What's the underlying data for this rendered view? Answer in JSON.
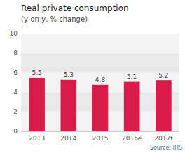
{
  "chart_data": {
    "type": "bar",
    "title": "Real private consumption",
    "subtitle": "(y-on-y, % change)",
    "categories": [
      "2013",
      "2014",
      "2015",
      "2016e",
      "2017f"
    ],
    "values": [
      5.5,
      5.3,
      4.8,
      5.1,
      5.2
    ],
    "color": "#d81b4a",
    "ylim": [
      0,
      10
    ],
    "yticks": [
      0,
      2,
      4,
      6,
      8,
      10
    ],
    "grid": true,
    "data_labels": true,
    "annotations": [
      "Source: IHS"
    ]
  }
}
